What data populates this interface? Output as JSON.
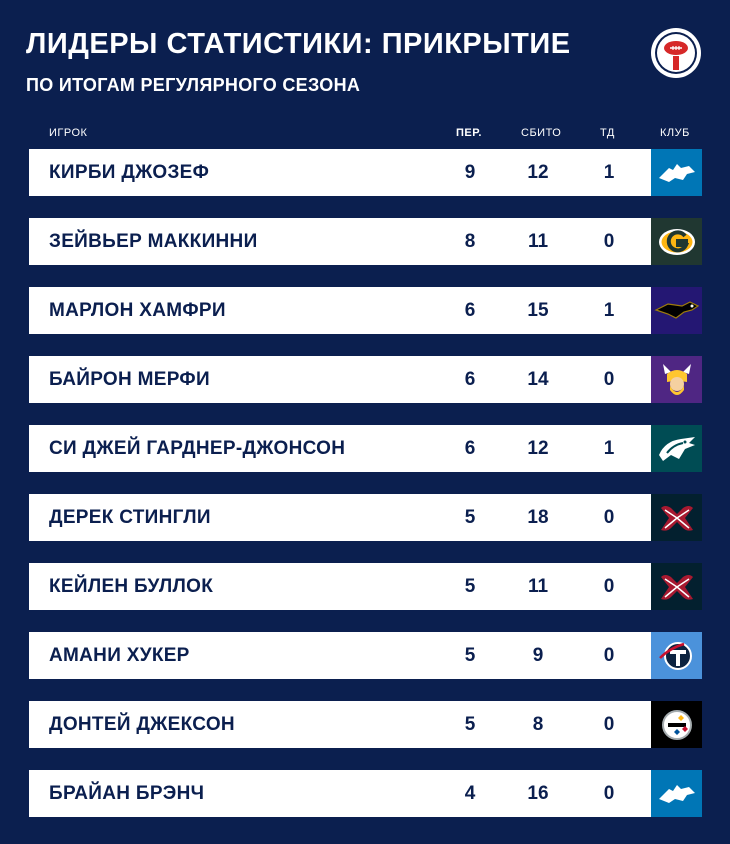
{
  "header": {
    "title": "ЛИДЕРЫ СТАТИСТИКИ: ПРИКРЫТИЕ",
    "subtitle": "ПО ИТОГАМ РЕГУЛЯРНОГО СЕЗОНА",
    "logo_icon": "football-logo-icon"
  },
  "columns": {
    "player": "ИГРОК",
    "interceptions": "ПЕР.",
    "passes_defended": "СБИТО",
    "touchdowns": "ТД",
    "club": "КЛУБ"
  },
  "colors": {
    "background": "#0b1f4f",
    "lions": "#0076b6",
    "packers": "#203731",
    "ravens": "#241773",
    "vikings": "#4f2683",
    "eagles": "#004c54",
    "texans": "#03202f",
    "titans": "#4b92db",
    "steelers": "#000000"
  },
  "rows": [
    {
      "name": "КИРБИ ДЖОЗЕФ",
      "int": "9",
      "pd": "12",
      "td": "1",
      "club_icon": "lions-logo-icon"
    },
    {
      "name": "ЗЕЙВЬЕР МАККИННИ",
      "int": "8",
      "pd": "11",
      "td": "0",
      "club_icon": "packers-logo-icon"
    },
    {
      "name": "МАРЛОН ХАМФРИ",
      "int": "6",
      "pd": "15",
      "td": "1",
      "club_icon": "ravens-logo-icon"
    },
    {
      "name": "БАЙРОН МЕРФИ",
      "int": "6",
      "pd": "14",
      "td": "0",
      "club_icon": "vikings-logo-icon"
    },
    {
      "name": "СИ ДЖЕЙ ГАРДНЕР-ДЖОНСОН",
      "int": "6",
      "pd": "12",
      "td": "1",
      "club_icon": "eagles-logo-icon"
    },
    {
      "name": "ДЕРЕК СТИНГЛИ",
      "int": "5",
      "pd": "18",
      "td": "0",
      "club_icon": "texans-logo-icon"
    },
    {
      "name": "КЕЙЛЕН БУЛЛОК",
      "int": "5",
      "pd": "11",
      "td": "0",
      "club_icon": "texans-logo-icon"
    },
    {
      "name": "АМАНИ ХУКЕР",
      "int": "5",
      "pd": "9",
      "td": "0",
      "club_icon": "titans-logo-icon"
    },
    {
      "name": "ДОНТЕЙ ДЖЕКСОН",
      "int": "5",
      "pd": "8",
      "td": "0",
      "club_icon": "steelers-logo-icon"
    },
    {
      "name": "БРАЙАН БРЭНЧ",
      "int": "4",
      "pd": "16",
      "td": "0",
      "club_icon": "lions-logo-icon"
    }
  ]
}
